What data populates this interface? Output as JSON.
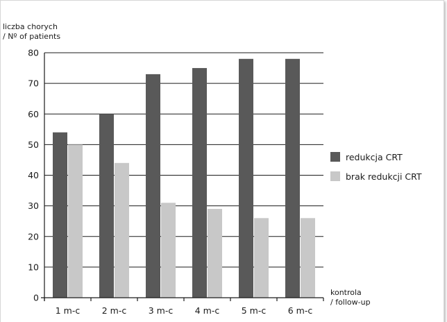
{
  "chart_data": {
    "type": "bar",
    "ylabel_line1": "liczba chorych",
    "ylabel_line2": "/ Nº of patients",
    "xlabel_line1": "kontrola",
    "xlabel_line2": "/ follow-up",
    "categories": [
      "1 m-c",
      "2 m-c",
      "3 m-c",
      "4 m-c",
      "5 m-c",
      "6 m-c"
    ],
    "series": [
      {
        "name": "redukcja CRT",
        "color": "#595959",
        "values": [
          54,
          60,
          73,
          75,
          78,
          78
        ]
      },
      {
        "name": "brak redukcji CRT",
        "color": "#c8c8c8",
        "values": [
          50,
          44,
          31,
          29,
          26,
          26
        ]
      }
    ],
    "ylim": [
      0,
      80
    ],
    "yticks": [
      0,
      10,
      20,
      30,
      40,
      50,
      60,
      70,
      80
    ],
    "grid": true,
    "legend": "right"
  }
}
